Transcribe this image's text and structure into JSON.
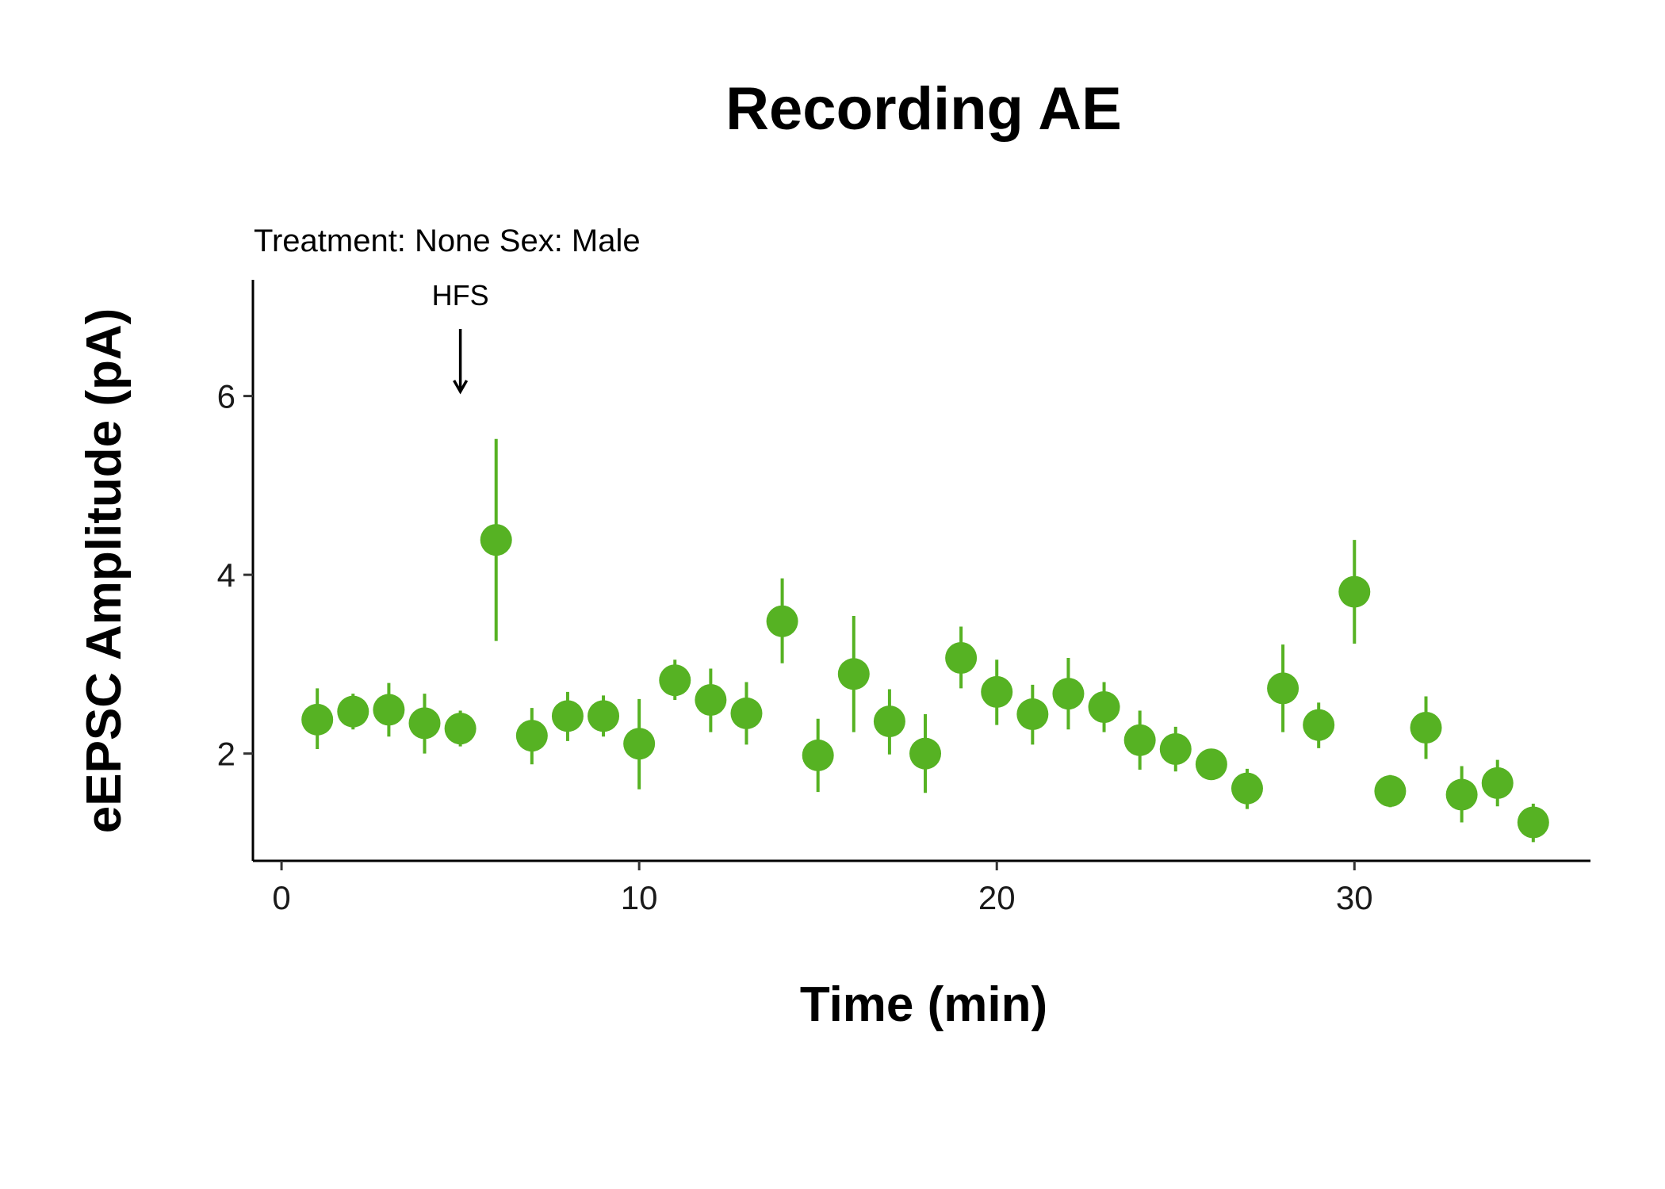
{
  "chart_data": {
    "type": "scatter",
    "title": "Recording AE",
    "subtitle": "Treatment: None  Sex: Male",
    "xlabel": "Time (min)",
    "ylabel": "eEPSC Amplitude (pA)",
    "xlim": [
      -0.8,
      36.6
    ],
    "ylim": [
      0.8,
      7.3
    ],
    "x_ticks": [
      0,
      10,
      20,
      30
    ],
    "y_ticks": [
      2,
      4,
      6
    ],
    "grid": false,
    "legend": "none",
    "point_color": "#56B223",
    "annotation": {
      "label": "HFS",
      "x": 5,
      "y_from": 6.75,
      "y_to": 6.05
    },
    "points": [
      {
        "x": 1,
        "y": 2.38,
        "ymin": 2.05,
        "ymax": 2.73
      },
      {
        "x": 2,
        "y": 2.47,
        "ymin": 2.27,
        "ymax": 2.67
      },
      {
        "x": 3,
        "y": 2.49,
        "ymin": 2.19,
        "ymax": 2.79
      },
      {
        "x": 4,
        "y": 2.34,
        "ymin": 2.0,
        "ymax": 2.67
      },
      {
        "x": 5,
        "y": 2.28,
        "ymin": 2.08,
        "ymax": 2.48
      },
      {
        "x": 6,
        "y": 4.39,
        "ymin": 3.26,
        "ymax": 5.52
      },
      {
        "x": 7,
        "y": 2.2,
        "ymin": 1.88,
        "ymax": 2.51
      },
      {
        "x": 8,
        "y": 2.42,
        "ymin": 2.14,
        "ymax": 2.69
      },
      {
        "x": 9,
        "y": 2.42,
        "ymin": 2.19,
        "ymax": 2.65
      },
      {
        "x": 10,
        "y": 2.11,
        "ymin": 1.6,
        "ymax": 2.61
      },
      {
        "x": 11,
        "y": 2.82,
        "ymin": 2.6,
        "ymax": 3.05
      },
      {
        "x": 12,
        "y": 2.6,
        "ymin": 2.24,
        "ymax": 2.95
      },
      {
        "x": 13,
        "y": 2.45,
        "ymin": 2.1,
        "ymax": 2.8
      },
      {
        "x": 14,
        "y": 3.48,
        "ymin": 3.01,
        "ymax": 3.96
      },
      {
        "x": 15,
        "y": 1.98,
        "ymin": 1.57,
        "ymax": 2.39
      },
      {
        "x": 16,
        "y": 2.89,
        "ymin": 2.24,
        "ymax": 3.54
      },
      {
        "x": 17,
        "y": 2.36,
        "ymin": 1.99,
        "ymax": 2.72
      },
      {
        "x": 18,
        "y": 2.0,
        "ymin": 1.56,
        "ymax": 2.44
      },
      {
        "x": 19,
        "y": 3.07,
        "ymin": 2.73,
        "ymax": 3.42
      },
      {
        "x": 20,
        "y": 2.69,
        "ymin": 2.32,
        "ymax": 3.05
      },
      {
        "x": 21,
        "y": 2.44,
        "ymin": 2.1,
        "ymax": 2.77
      },
      {
        "x": 22,
        "y": 2.67,
        "ymin": 2.27,
        "ymax": 3.07
      },
      {
        "x": 23,
        "y": 2.52,
        "ymin": 2.24,
        "ymax": 2.8
      },
      {
        "x": 24,
        "y": 2.15,
        "ymin": 1.82,
        "ymax": 2.48
      },
      {
        "x": 25,
        "y": 2.05,
        "ymin": 1.8,
        "ymax": 2.3
      },
      {
        "x": 26,
        "y": 1.88,
        "ymin": 1.8,
        "ymax": 1.96
      },
      {
        "x": 27,
        "y": 1.61,
        "ymin": 1.38,
        "ymax": 1.83
      },
      {
        "x": 28,
        "y": 2.73,
        "ymin": 2.24,
        "ymax": 3.22
      },
      {
        "x": 29,
        "y": 2.32,
        "ymin": 2.06,
        "ymax": 2.57
      },
      {
        "x": 30,
        "y": 3.81,
        "ymin": 3.23,
        "ymax": 4.39
      },
      {
        "x": 31,
        "y": 1.58,
        "ymin": 1.4,
        "ymax": 1.76
      },
      {
        "x": 32,
        "y": 2.29,
        "ymin": 1.94,
        "ymax": 2.64
      },
      {
        "x": 33,
        "y": 1.54,
        "ymin": 1.23,
        "ymax": 1.86
      },
      {
        "x": 34,
        "y": 1.67,
        "ymin": 1.41,
        "ymax": 1.93
      },
      {
        "x": 35,
        "y": 1.23,
        "ymin": 1.01,
        "ymax": 1.44
      }
    ]
  }
}
